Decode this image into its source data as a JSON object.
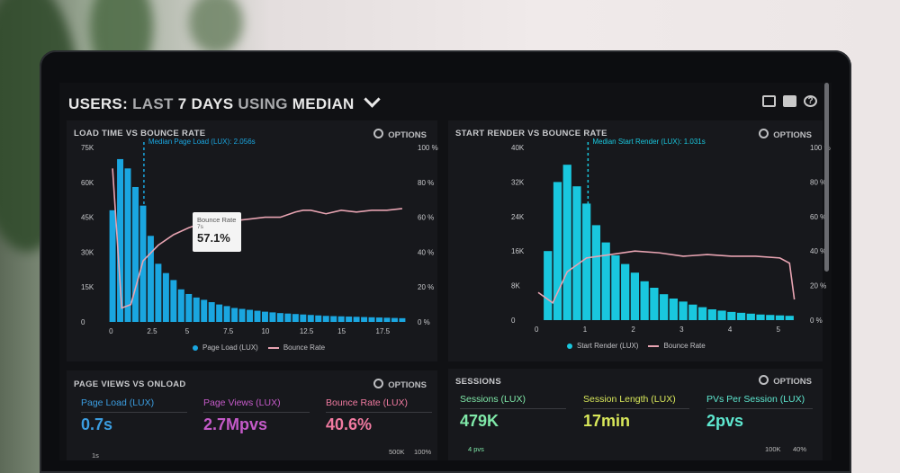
{
  "header": {
    "title_parts": [
      "USERS:",
      "LAST",
      "7 DAYS",
      "USING",
      "MEDIAN"
    ],
    "icons": [
      "monitor-icon",
      "share-icon",
      "help-icon"
    ]
  },
  "panels": {
    "load_time": {
      "title": "LOAD TIME VS BOUNCE RATE",
      "options": "OPTIONS",
      "median_label": "Median Page Load (LUX): 2.056s",
      "tooltip": {
        "label": "Bounce Rate",
        "sub": "7s",
        "value": "57.1%"
      },
      "legend": [
        "Page Load (LUX)",
        "Bounce Rate"
      ]
    },
    "start_render": {
      "title": "START RENDER VS BOUNCE RATE",
      "options": "OPTIONS",
      "median_label": "Median Start Render (LUX): 1.031s",
      "legend": [
        "Start Render (LUX)",
        "Bounce Rate"
      ]
    },
    "page_views": {
      "title": "PAGE VIEWS VS ONLOAD",
      "options": "OPTIONS",
      "metrics": [
        {
          "label": "Page Load (LUX)",
          "value": "0.7s",
          "sub": "1s"
        },
        {
          "label": "Page Views (LUX)",
          "value": "2.7Mpvs",
          "sub": ""
        },
        {
          "label": "Bounce Rate (LUX)",
          "value": "40.6%",
          "sub": "500K",
          "sub2": "100%"
        }
      ]
    },
    "sessions": {
      "title": "SESSIONS",
      "options": "OPTIONS",
      "metrics": [
        {
          "label": "Sessions (LUX)",
          "value": "479K",
          "sub": "4 pvs"
        },
        {
          "label": "Session Length (LUX)",
          "value": "17min",
          "sub": ""
        },
        {
          "label": "PVs Per Session (LUX)",
          "value": "2pvs",
          "sub": "100K",
          "sub2": "40%"
        }
      ]
    }
  },
  "colors": {
    "bar": "#1aa6e0",
    "bar2": "#19c7de",
    "bounce": "#e8a4b2",
    "blue_label": "#3b9de0",
    "purple_label": "#c45ac8",
    "pink_label": "#f07aa0",
    "green_label": "#7fe8a8",
    "yellow_label": "#d9e85a",
    "cyan_label": "#5ee8d0"
  },
  "chart_data": [
    {
      "type": "bar",
      "title": "LOAD TIME VS BOUNCE RATE",
      "x": [
        0,
        0.5,
        1,
        1.5,
        2,
        2.5,
        3,
        3.5,
        4,
        4.5,
        5,
        5.5,
        6,
        6.5,
        7,
        7.5,
        8,
        8.5,
        9,
        9.5,
        10,
        10.5,
        11,
        11.5,
        12,
        12.5,
        13,
        13.5,
        14,
        14.5,
        15,
        15.5,
        16,
        16.5,
        17,
        17.5,
        18,
        18.5,
        19
      ],
      "xticks": [
        "0",
        "2.5",
        "5",
        "7.5",
        "10",
        "12.5",
        "15",
        "17.5"
      ],
      "xlim": [
        -0.3,
        19.3
      ],
      "yticks_left": [
        "0",
        "15K",
        "30K",
        "45K",
        "60K",
        "75K"
      ],
      "ylim_left": [
        0,
        75000
      ],
      "yticks_right": [
        "0 %",
        "20 %",
        "40 %",
        "60 %",
        "80 %",
        "100 %"
      ],
      "ylim_right": [
        0,
        100
      ],
      "series": [
        {
          "name": "Page Load (LUX)",
          "values": [
            48000,
            70000,
            66000,
            58000,
            50000,
            37000,
            25000,
            21000,
            18000,
            14000,
            12000,
            10500,
            9500,
            8500,
            7500,
            6800,
            6000,
            5600,
            5200,
            4800,
            4400,
            4100,
            3800,
            3600,
            3400,
            3200,
            3000,
            2800,
            2600,
            2500,
            2400,
            2300,
            2200,
            2100,
            2000,
            1900,
            1800,
            1700,
            1600
          ]
        },
        {
          "name": "Bounce Rate",
          "x": [
            0,
            0.6,
            1.2,
            2,
            3,
            4,
            5,
            6,
            7,
            8,
            9,
            10,
            11,
            12,
            12.5,
            13,
            14,
            15,
            16,
            17,
            18,
            19
          ],
          "values": [
            88,
            8,
            10,
            35,
            44,
            50,
            54,
            57,
            57,
            58,
            59,
            60,
            60,
            63,
            64,
            64,
            62,
            64,
            63,
            64,
            64,
            65
          ]
        }
      ],
      "median_x": 2.056
    },
    {
      "type": "bar",
      "title": "START RENDER VS BOUNCE RATE",
      "x": [
        0.2,
        0.4,
        0.6,
        0.8,
        1,
        1.2,
        1.4,
        1.6,
        1.8,
        2,
        2.2,
        2.4,
        2.6,
        2.8,
        3,
        3.2,
        3.4,
        3.6,
        3.8,
        4,
        4.2,
        4.4,
        4.6,
        4.8,
        5,
        5.2
      ],
      "xticks": [
        "0",
        "1",
        "2",
        "3",
        "4",
        "5"
      ],
      "xlim": [
        0,
        5.4
      ],
      "yticks_left": [
        "0",
        "8K",
        "16K",
        "24K",
        "32K",
        "40K"
      ],
      "ylim_left": [
        0,
        40000
      ],
      "yticks_right": [
        "0 %",
        "20 %",
        "40 %",
        "60 %",
        "80 %",
        "100 %"
      ],
      "ylim_right": [
        0,
        100
      ],
      "series": [
        {
          "name": "Start Render (LUX)",
          "values": [
            16000,
            32000,
            36000,
            31000,
            27000,
            22000,
            18000,
            15000,
            13000,
            11000,
            9000,
            7500,
            6000,
            5000,
            4300,
            3600,
            3000,
            2500,
            2200,
            1900,
            1700,
            1500,
            1300,
            1200,
            1100,
            1000
          ]
        },
        {
          "name": "Bounce Rate",
          "x": [
            0,
            0.3,
            0.6,
            1,
            1.5,
            2,
            2.5,
            3,
            3.5,
            4,
            4.5,
            5,
            5.2,
            5.3
          ],
          "values": [
            16,
            10,
            28,
            36,
            38,
            40,
            39,
            37,
            38,
            37,
            37,
            36,
            33,
            12
          ]
        }
      ],
      "median_x": 1.031
    }
  ]
}
